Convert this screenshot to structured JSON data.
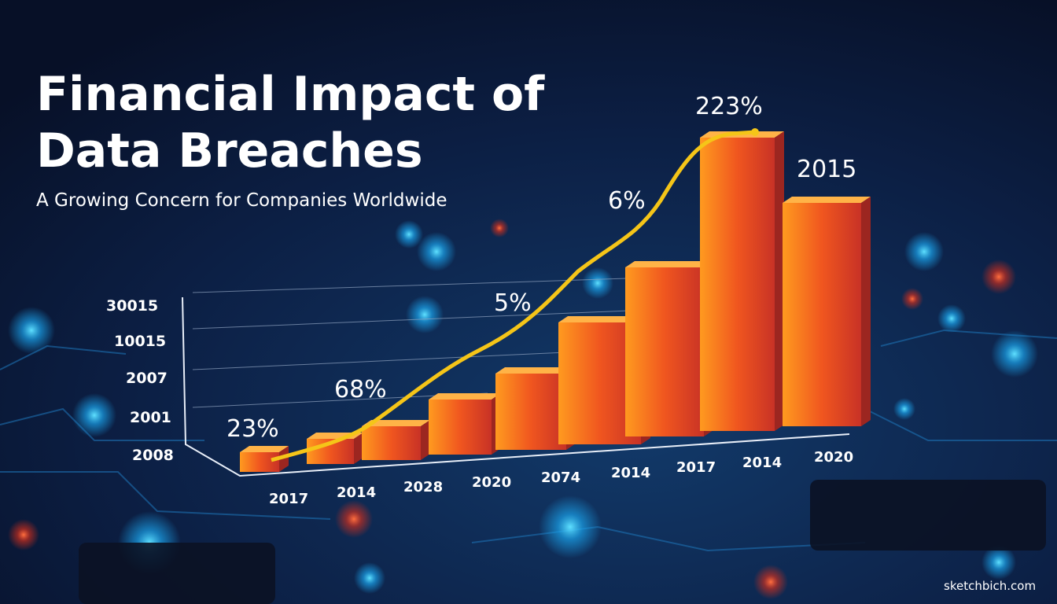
{
  "header": {
    "title_lines": [
      "Financial Impact of",
      "Data Breaches"
    ],
    "subtitle": "A Growing Concern for Companies Worldwide"
  },
  "axis_labels": [
    "30015",
    "10015",
    "2007",
    "2001",
    "2008"
  ],
  "x_labels": [
    "2017",
    "2014",
    "2028",
    "2020",
    "2074",
    "2014",
    "2017",
    "2014",
    "2020"
  ],
  "annotations": [
    "23%",
    "68%",
    "5%",
    "6%",
    "223%",
    "2015"
  ],
  "watermark": "sketchbich.com"
}
